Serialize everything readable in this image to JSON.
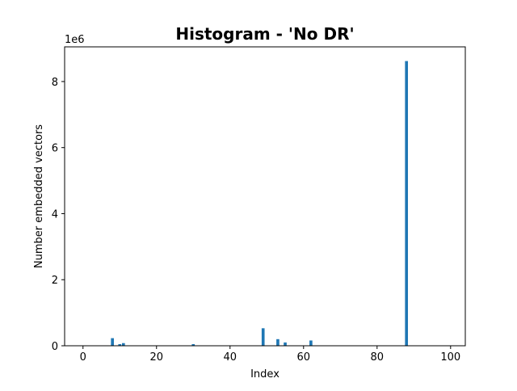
{
  "chart_data": {
    "type": "bar",
    "title": "Histogram - 'No DR'",
    "xlabel": "Index",
    "ylabel": "Number embedded vectors",
    "y_offset_label": "1e6",
    "xlim": [
      -5,
      104
    ],
    "ylim": [
      0,
      9.05
    ],
    "y_unit_multiplier": 1000000,
    "x_ticks": [
      0,
      20,
      40,
      60,
      80,
      100
    ],
    "y_ticks": [
      0,
      2,
      4,
      6,
      8
    ],
    "grid": false,
    "legend": "none",
    "bar_color": "#1f77b4",
    "bar_width": 0.8,
    "x": [
      8,
      10,
      11,
      30,
      49,
      53,
      55,
      62,
      88
    ],
    "values": [
      0.23,
      0.05,
      0.08,
      0.05,
      0.53,
      0.2,
      0.1,
      0.16,
      8.62
    ]
  }
}
